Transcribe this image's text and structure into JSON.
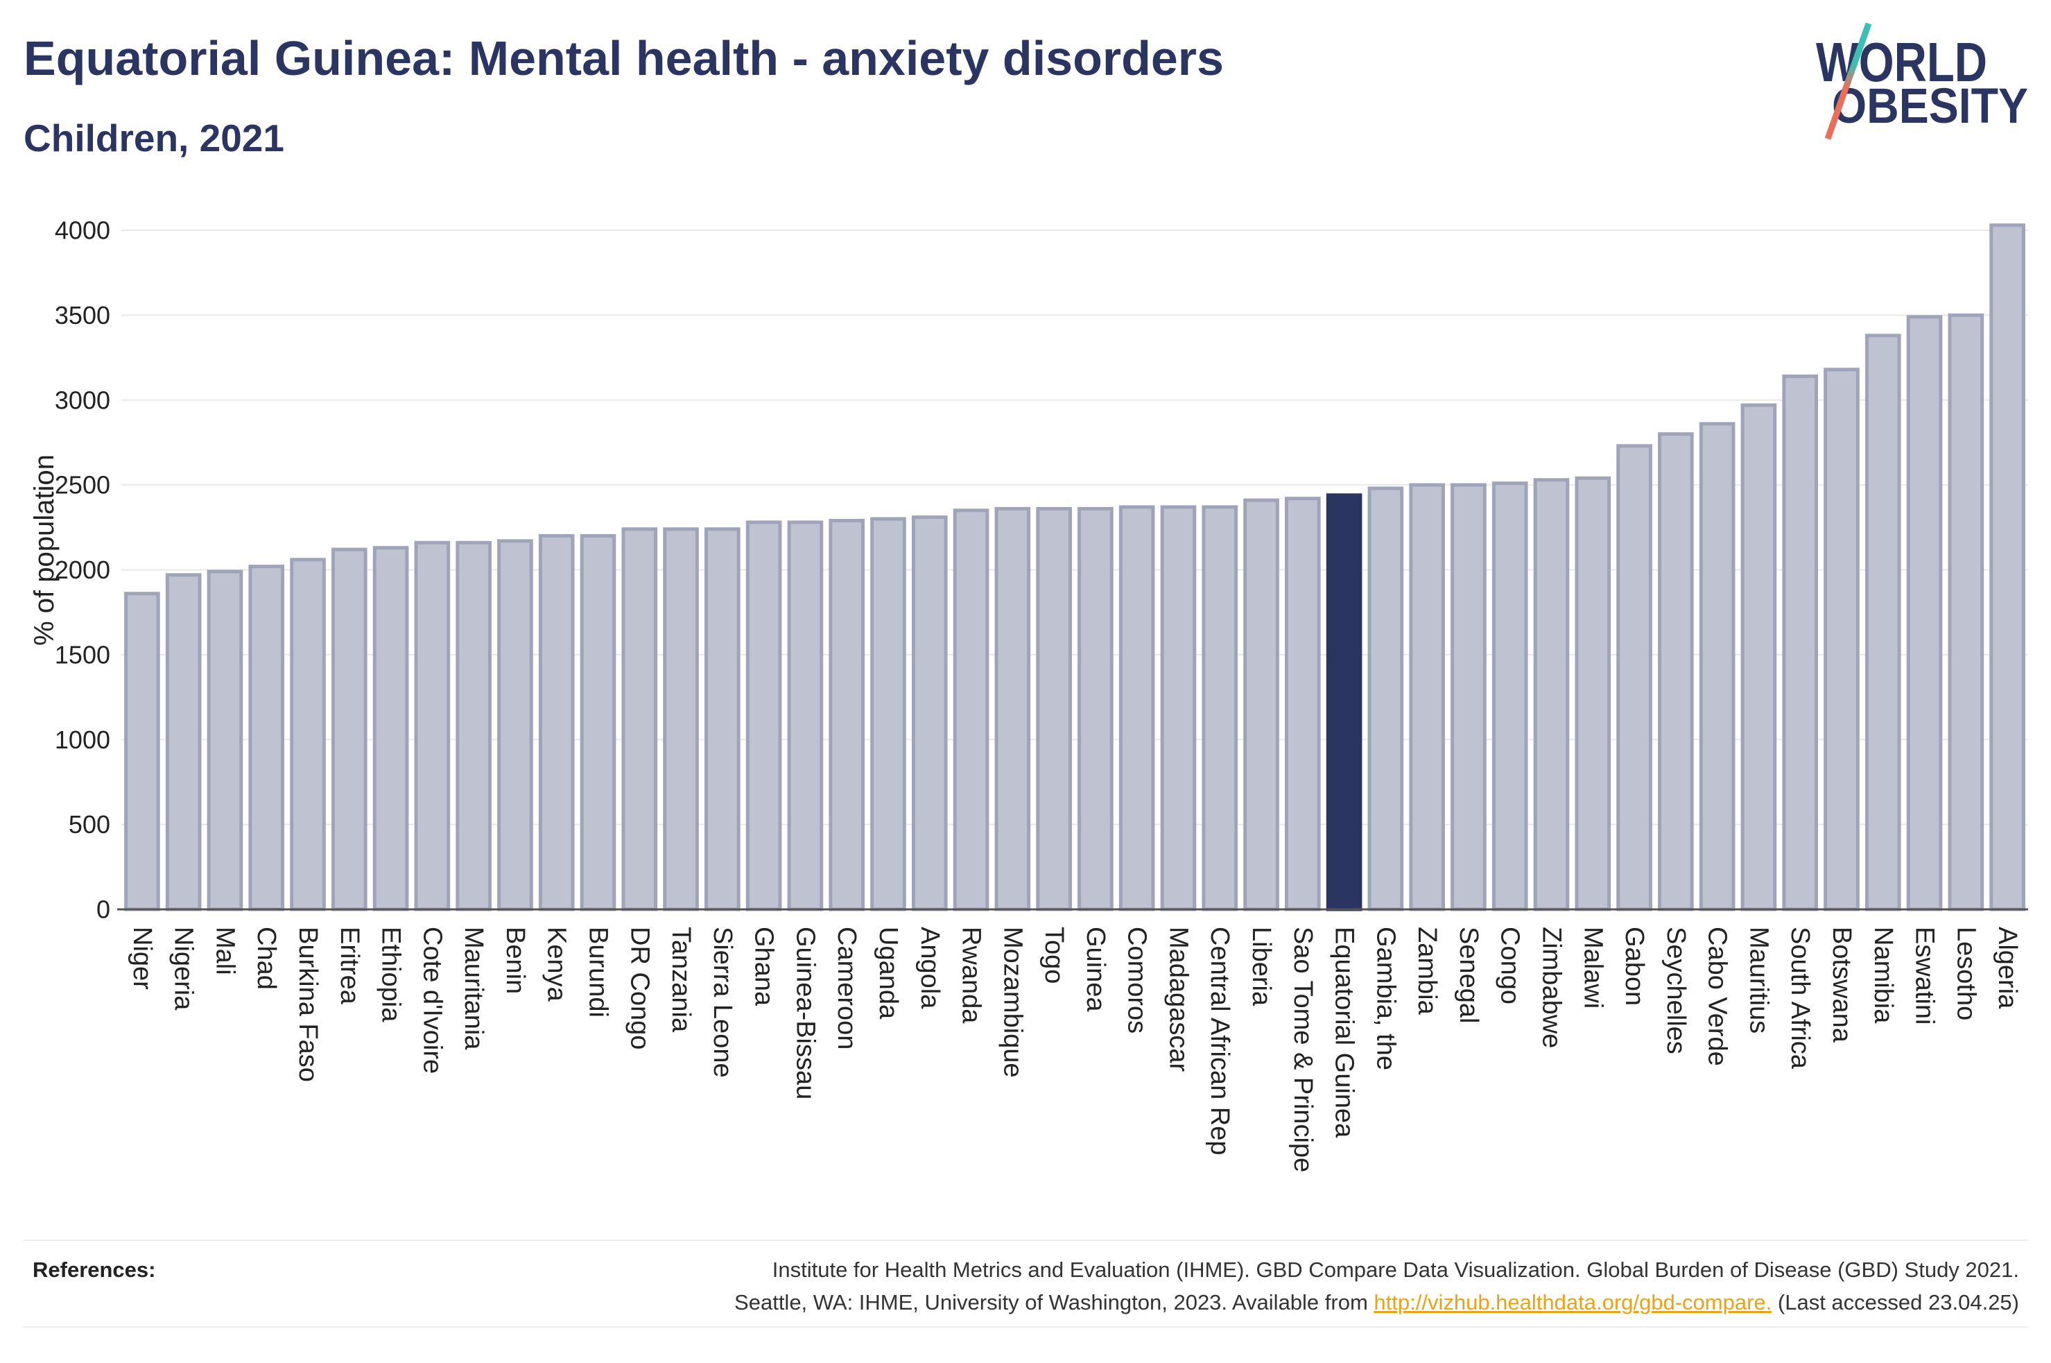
{
  "chart_data": {
    "type": "bar",
    "title": "Equatorial Guinea: Mental health - anxiety disorders",
    "subtitle": "Children, 2021",
    "xlabel": "",
    "ylabel": "% of population",
    "yticks": [
      0,
      500,
      1000,
      1500,
      2000,
      2500,
      3000,
      3500,
      4000
    ],
    "grid": true,
    "legend": false,
    "categories": [
      "Niger",
      "Nigeria",
      "Mali",
      "Chad",
      "Burkina Faso",
      "Eritrea",
      "Ethiopia",
      "Cote d'Ivoire",
      "Mauritania",
      "Benin",
      "Kenya",
      "Burundi",
      "DR Congo",
      "Tanzania",
      "Sierra Leone",
      "Ghana",
      "Guinea-Bissau",
      "Cameroon",
      "Uganda",
      "Angola",
      "Rwanda",
      "Mozambique",
      "Togo",
      "Guinea",
      "Comoros",
      "Madagascar",
      "Central African Rep",
      "Liberia",
      "Sao Tome & Principe",
      "Equatorial Guinea",
      "Gambia, the",
      "Zambia",
      "Senegal",
      "Congo",
      "Zimbabwe",
      "Malawi",
      "Gabon",
      "Seychelles",
      "Cabo Verde",
      "Mauritius",
      "South Africa",
      "Botswana",
      "Namibia",
      "Eswatini",
      "Lesotho",
      "Algeria"
    ],
    "values": [
      1860,
      1970,
      1990,
      2020,
      2060,
      2120,
      2130,
      2160,
      2160,
      2170,
      2200,
      2200,
      2240,
      2240,
      2240,
      2280,
      2280,
      2290,
      2300,
      2310,
      2350,
      2360,
      2360,
      2360,
      2370,
      2370,
      2370,
      2410,
      2420,
      2440,
      2480,
      2500,
      2500,
      2510,
      2530,
      2540,
      2730,
      2800,
      2860,
      2970,
      3140,
      3180,
      3380,
      3490,
      3500,
      4030
    ],
    "highlight_category": "Equatorial Guinea",
    "colors": {
      "bar_fill": "#bfc2d0",
      "bar_border": "#a0a4b8",
      "highlight_fill": "#2b3561",
      "gridline": "#e8e8e8"
    }
  },
  "logo": {
    "line1": "WORLD",
    "line2": "OBESITY",
    "colors": {
      "text": "#2b3561",
      "slash_top": "#3bbfb5",
      "slash_bottom": "#e8705a"
    }
  },
  "references": {
    "label": "References:",
    "line1": "Institute for Health Metrics and Evaluation (IHME). GBD Compare Data Visualization. Global Burden of Disease (GBD) Study 2021.",
    "line2_prefix": "Seattle, WA: IHME, University of Washington, 2023. Available from ",
    "link_text": "http://vizhub.healthdata.org/gbd-compare.",
    "line2_suffix": " (Last accessed 23.04.25)",
    "link_color": "#e8a317"
  }
}
